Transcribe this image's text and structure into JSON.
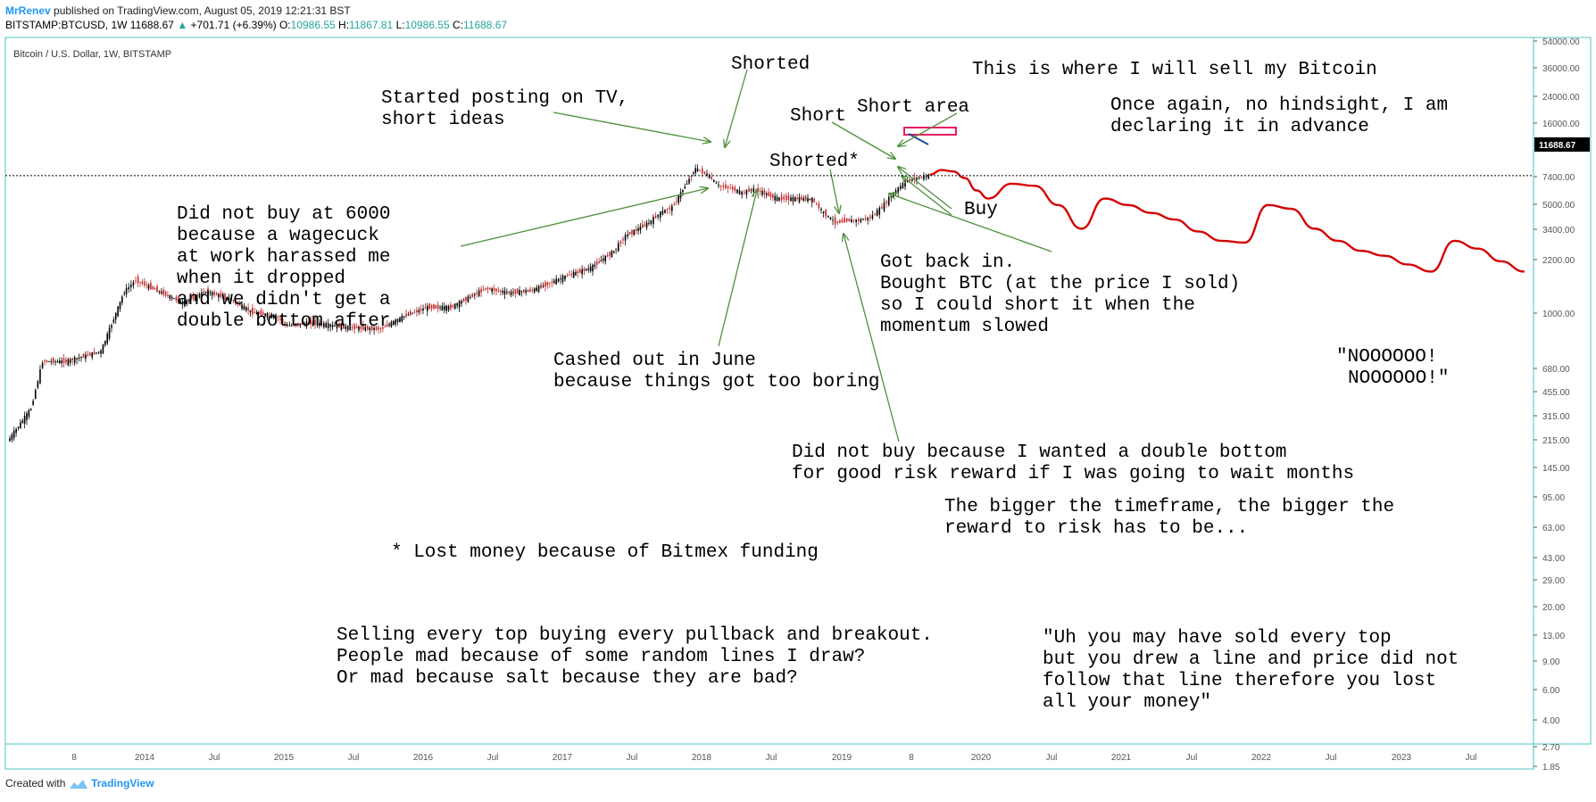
{
  "header": {
    "author": "MrRenev",
    "published": "published on TradingView.com, August 05, 2019 12:21:31 BST",
    "symbol_line": "BITSTAMP:BTCUSD, 1W",
    "last": "11688.67",
    "change": "+701.71 (+6.39%)",
    "open_label": "O:",
    "open": "10986.55",
    "high_label": "H:",
    "high": "11867.81",
    "low_label": "L:",
    "low": "10986.55",
    "close_label": "C:",
    "close": "11688.67"
  },
  "footer": {
    "created_with": "Created with",
    "brand": "TradingView"
  },
  "colors": {
    "frame": "#4fc3c3",
    "candle_up": "#000000",
    "candle_down": "#c62828",
    "annotation_arrow": "#4f8f3a",
    "projection": "#d50000",
    "box": "#e91e63"
  },
  "chart_data": {
    "type": "line",
    "title": "Bitcoin / U.S. Dollar, 1W, BITSTAMP",
    "scale": "log",
    "last_price_label": "11688.67",
    "y_ticks": [
      "54000.00",
      "36000.00",
      "24000.00",
      "16000.00",
      "11688.67",
      "7400.00",
      "5000.00",
      "3400.00",
      "2200.00",
      "1000.00",
      "680.00",
      "455.00",
      "315.00",
      "215.00",
      "145.00",
      "95.00",
      "63.00",
      "43.00",
      "29.00",
      "20.00",
      "13.00",
      "9.00",
      "6.00",
      "4.00",
      "2.70",
      "1.85"
    ],
    "x_ticks": [
      "8",
      "2014",
      "Jul",
      "2015",
      "Jul",
      "2016",
      "Jul",
      "2017",
      "Jul",
      "2018",
      "Jul",
      "2019",
      "8",
      "2020",
      "Jul",
      "2021",
      "Jul",
      "2022",
      "Jul",
      "2023",
      "Jul"
    ],
    "series": [
      {
        "name": "BTCUSD",
        "x": [
          "2013-01",
          "2013-03",
          "2013-04",
          "2013-06",
          "2013-09",
          "2013-11",
          "2013-12",
          "2014-02",
          "2014-04",
          "2014-06",
          "2014-08",
          "2014-10",
          "2014-12",
          "2015-01",
          "2015-03",
          "2015-06",
          "2015-09",
          "2015-11",
          "2016-01",
          "2016-03",
          "2016-06",
          "2016-08",
          "2016-10",
          "2017-01",
          "2017-03",
          "2017-05",
          "2017-06",
          "2017-08",
          "2017-09",
          "2017-10",
          "2017-12",
          "2018-01",
          "2018-02",
          "2018-03",
          "2018-04",
          "2018-05",
          "2018-07",
          "2018-08",
          "2018-10",
          "2018-11",
          "2018-12",
          "2019-01",
          "2019-02",
          "2019-03",
          "2019-04",
          "2019-05",
          "2019-06",
          "2019-07",
          "2019-08"
        ],
        "values": [
          13,
          30,
          100,
          100,
          130,
          600,
          800,
          600,
          450,
          600,
          500,
          350,
          320,
          250,
          270,
          240,
          230,
          320,
          400,
          400,
          650,
          580,
          620,
          900,
          1100,
          1700,
          2500,
          3500,
          4500,
          5200,
          14000,
          12000,
          9000,
          8500,
          7500,
          8300,
          6500,
          6500,
          6400,
          4500,
          3500,
          3700,
          3700,
          4000,
          5200,
          7500,
          10000,
          11000,
          11688
        ]
      },
      {
        "name": "Projection",
        "x": [
          "2019-08",
          "2019-09",
          "2019-10",
          "2019-11",
          "2019-12",
          "2020-01",
          "2020-03",
          "2020-05",
          "2020-07",
          "2020-09",
          "2020-11",
          "2021-01",
          "2021-03",
          "2021-05",
          "2021-07",
          "2021-09",
          "2021-11",
          "2022-01",
          "2022-03",
          "2022-05",
          "2022-07",
          "2022-09",
          "2022-11",
          "2023-01",
          "2023-03",
          "2023-05",
          "2023-07",
          "2023-09",
          "2023-11"
        ],
        "values": [
          12000,
          13500,
          13000,
          11000,
          8000,
          6500,
          9500,
          9000,
          5500,
          3000,
          6500,
          5500,
          4500,
          3800,
          2800,
          2200,
          2100,
          5500,
          5000,
          3000,
          2200,
          1700,
          1500,
          1200,
          1000,
          2200,
          1800,
          1300,
          1000
        ]
      }
    ],
    "annotations": [
      "Shorted",
      "This is where I will sell my Bitcoin",
      "Started posting on TV,",
      "short ideas",
      "Short area",
      "Once again, no hindsight, I am",
      "declaring it in advance",
      "Short",
      "Shorted*",
      "Buy",
      "Did not buy at 6000",
      "because a wagecuck",
      "at work harassed me",
      "when it dropped",
      "and we didn't get a",
      "double bottom after",
      "Got back in.",
      "Bought BTC (at the price I sold)",
      "so I could short it when the",
      "momentum slowed",
      "Cashed out in June",
      "because things got too boring",
      "\"NOOOOOO!",
      "NOOOOOO!\"",
      "Did not buy because I wanted a double bottom",
      "for good risk reward if I was going to wait months",
      "The bigger the timeframe, the bigger the",
      "reward to risk has to be...",
      "* Lost money because of Bitmex funding",
      "Selling every top buying every pullback and breakout.",
      "People mad because of some random lines I draw?",
      "Or mad because salt because they are bad?",
      "\"Uh you may have sold every top",
      "but you drew a line and price did not",
      "follow that line therefore you lost",
      "all your money\""
    ]
  }
}
